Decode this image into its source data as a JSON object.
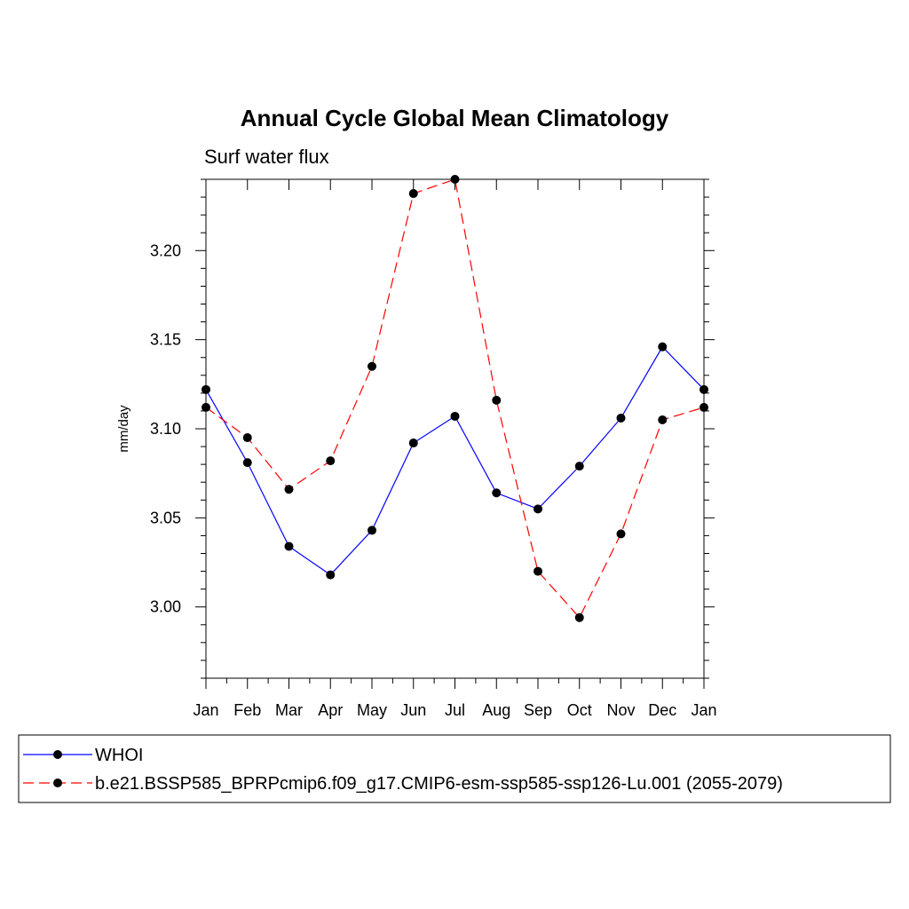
{
  "chart_data": {
    "type": "line",
    "title": "Annual Cycle Global Mean Climatology",
    "subtitle": "Surf water flux",
    "xlabel": "",
    "ylabel": "mm/day",
    "categories": [
      "Jan",
      "Feb",
      "Mar",
      "Apr",
      "May",
      "Jun",
      "Jul",
      "Aug",
      "Sep",
      "Oct",
      "Nov",
      "Dec",
      "Jan"
    ],
    "ylim": [
      2.96,
      3.24
    ],
    "yticks": [
      3.0,
      3.05,
      3.1,
      3.15,
      3.2
    ],
    "ytick_labels": [
      "3.00",
      "3.05",
      "3.10",
      "3.15",
      "3.20"
    ],
    "series": [
      {
        "name": "WHOI",
        "color": "#0000ff",
        "dash": "solid",
        "values": [
          3.122,
          3.081,
          3.034,
          3.018,
          3.043,
          3.092,
          3.107,
          3.064,
          3.055,
          3.079,
          3.106,
          3.146,
          3.122
        ]
      },
      {
        "name": "b.e21.BSSP585_BPRPcmip6.f09_g17.CMIP6-esm-ssp585-ssp126-Lu.001 (2055-2079)",
        "color": "#ff0000",
        "dash": "dashed",
        "values": [
          3.112,
          3.095,
          3.066,
          3.082,
          3.135,
          3.232,
          3.24,
          3.116,
          3.02,
          2.994,
          3.041,
          3.105,
          3.112
        ]
      }
    ],
    "legend_position": "bottom"
  }
}
